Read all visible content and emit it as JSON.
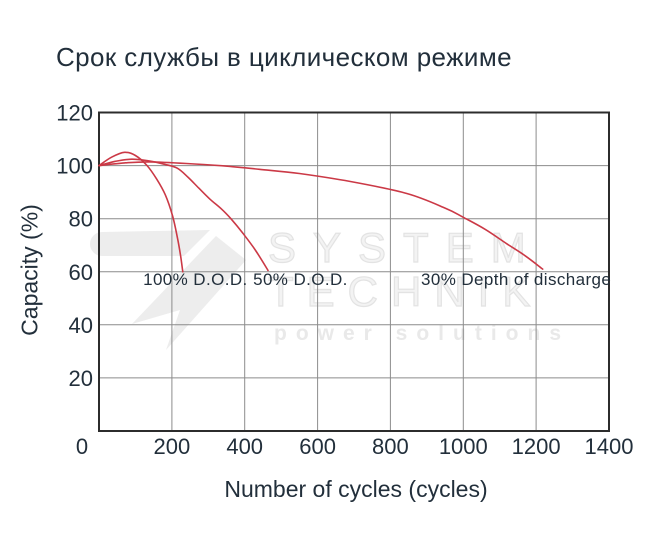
{
  "title": "Срок службы в циклическом режиме",
  "watermark": {
    "logo_icon": "lightning-arrow-logo",
    "line1": "SYSTEM",
    "line2": "TECHNIK",
    "line3": "power solutions"
  },
  "colors": {
    "curve": "#cb3946",
    "grid": "#8c8c8c",
    "frame": "#2c2c2c",
    "text": "#222f3b",
    "watermark": "#ececec"
  },
  "chart_data": {
    "type": "line",
    "title": "Срок службы в циклическом режиме",
    "xlabel": "Number of cycles (cycles)",
    "ylabel": "Capacity (%)",
    "xlim": [
      0,
      1400
    ],
    "ylim": [
      0,
      120
    ],
    "xticks": [
      0,
      200,
      400,
      600,
      800,
      1000,
      1200,
      1400
    ],
    "yticks": [
      0,
      20,
      40,
      60,
      80,
      100,
      120
    ],
    "grid": true,
    "legend": "inline-annotations",
    "series": [
      {
        "name": "100% D.O.D.",
        "points": [
          [
            0,
            100
          ],
          [
            35,
            103.2
          ],
          [
            70,
            105
          ],
          [
            100,
            103.8
          ],
          [
            132,
            100
          ],
          [
            158,
            95
          ],
          [
            182,
            89
          ],
          [
            202,
            81
          ],
          [
            215,
            73
          ],
          [
            224,
            66
          ],
          [
            230,
            60
          ]
        ]
      },
      {
        "name": "50% D.O.D.",
        "points": [
          [
            0,
            100
          ],
          [
            45,
            101.6
          ],
          [
            90,
            102.4
          ],
          [
            135,
            101.8
          ],
          [
            180,
            100.5
          ],
          [
            215,
            99
          ],
          [
            245,
            95.5
          ],
          [
            274,
            91.5
          ],
          [
            305,
            87.3
          ],
          [
            335,
            83.8
          ],
          [
            362,
            80
          ],
          [
            395,
            74.5
          ],
          [
            430,
            68
          ],
          [
            464,
            60.5
          ]
        ]
      },
      {
        "name": "30% Depth of discharge",
        "points": [
          [
            0,
            100
          ],
          [
            70,
            101
          ],
          [
            140,
            101.4
          ],
          [
            240,
            100.8
          ],
          [
            340,
            99.9
          ],
          [
            440,
            98.6
          ],
          [
            550,
            97
          ],
          [
            690,
            94
          ],
          [
            845,
            89.5
          ],
          [
            950,
            84
          ],
          [
            1000,
            80.5
          ],
          [
            1060,
            76
          ],
          [
            1120,
            70.5
          ],
          [
            1170,
            66
          ],
          [
            1218,
            61
          ]
        ]
      }
    ],
    "annotations": [
      {
        "text": "100% D.O.D.",
        "x": 121,
        "y": 55
      },
      {
        "text": "50% D.O.D.",
        "x": 423,
        "y": 55
      },
      {
        "text": "30% Depth of discharge",
        "x": 884,
        "y": 55
      }
    ]
  }
}
